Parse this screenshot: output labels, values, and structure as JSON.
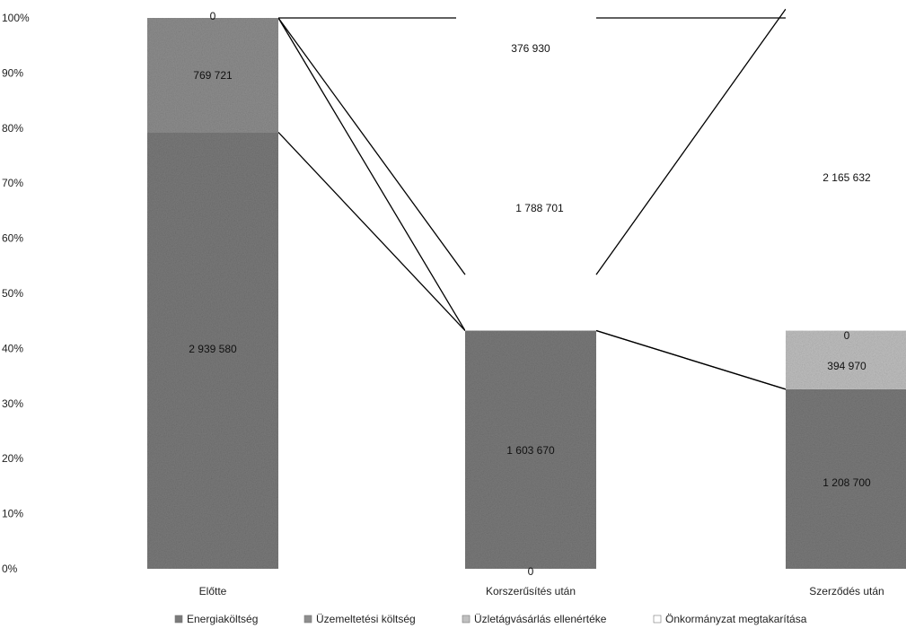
{
  "chart_data": {
    "type": "bar",
    "stacked": "100%",
    "categories": [
      "Előtte",
      "Korszerűsítés után",
      "Szerződés után"
    ],
    "y_ticks": [
      "0%",
      "10%",
      "20%",
      "30%",
      "40%",
      "50%",
      "60%",
      "70%",
      "80%",
      "90%",
      "100%"
    ],
    "ylim": [
      0,
      100
    ],
    "grid": false,
    "legend_position": "bottom",
    "series": [
      {
        "name": "Energiaköltség",
        "color": "#7a7a7a",
        "values": [
          2939580,
          1603670,
          1208700
        ]
      },
      {
        "name": "Üzemeltetési költség",
        "color": "#8e8e8e",
        "values": [
          769721,
          0,
          0
        ]
      },
      {
        "name": "Üzletágvásárlás ellenértéke",
        "color": "#c0c0c0",
        "values": [
          0,
          0,
          394970
        ]
      },
      {
        "name": "Önkormányzat megtakarítása",
        "color": "#ffffff",
        "values": [
          0,
          376930,
          2165632
        ]
      }
    ],
    "data_labels": [
      [
        "2 939 580",
        "769 721",
        "0",
        ""
      ],
      [
        "1 603 670",
        "0",
        "",
        "376 930"
      ],
      [
        "1 208 700",
        "0",
        "394 970",
        "2 165 632"
      ]
    ],
    "extra_labels": [
      {
        "text": "1 788 701"
      }
    ]
  }
}
